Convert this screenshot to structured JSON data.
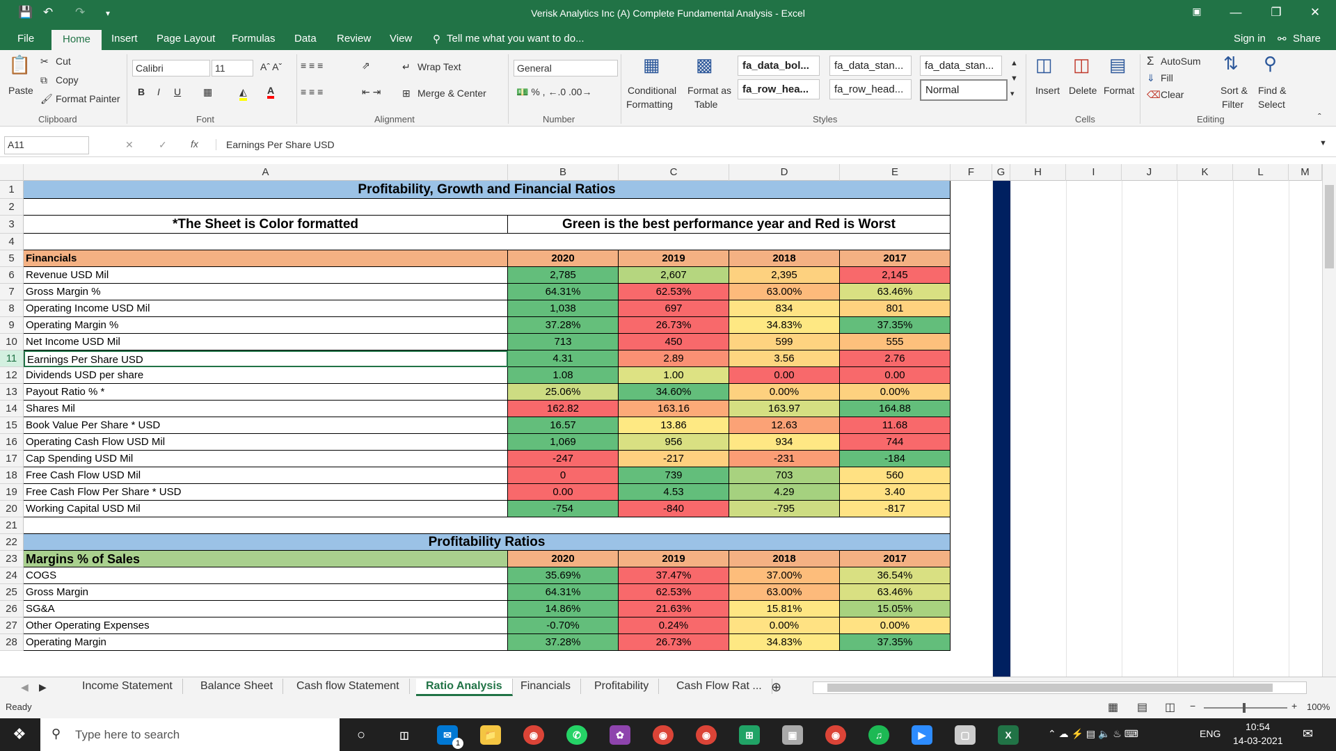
{
  "window": {
    "title": "Verisk Analytics Inc (A) Complete Fundamental Analysis - Excel"
  },
  "menu": {
    "items": [
      "File",
      "Home",
      "Insert",
      "Page Layout",
      "Formulas",
      "Data",
      "Review",
      "View"
    ],
    "tell_me": "Tell me what you want to do...",
    "sign_in": "Sign in",
    "share": "Share"
  },
  "ribbon": {
    "clipboard": {
      "paste": "Paste",
      "cut": "Cut",
      "copy": "Copy",
      "format_painter": "Format Painter",
      "label": "Clipboard"
    },
    "font": {
      "name": "Calibri",
      "size": "11",
      "label": "Font"
    },
    "alignment": {
      "wrap_text": "Wrap Text",
      "merge_center": "Merge & Center",
      "label": "Alignment"
    },
    "number": {
      "format": "General",
      "label": "Number"
    },
    "styles": {
      "conditional": "Conditional",
      "formatting": "Formatting",
      "format_as": "Format as",
      "table": "Table",
      "style1": "fa_data_bol...",
      "style2": "fa_data_stan...",
      "style3": "fa_data_stan...",
      "style4": "fa_row_hea...",
      "style5": "fa_row_head...",
      "style6": "Normal",
      "label": "Styles"
    },
    "cells": {
      "insert": "Insert",
      "delete": "Delete",
      "format": "Format",
      "label": "Cells"
    },
    "editing": {
      "autosum": "AutoSum",
      "fill": "Fill",
      "clear": "Clear",
      "sort": "Sort &",
      "filter": "Filter",
      "find": "Find &",
      "select": "Select",
      "label": "Editing"
    }
  },
  "formula_bar": {
    "name_box": "A11",
    "formula": "Earnings Per Share USD"
  },
  "columns": [
    "A",
    "B",
    "C",
    "D",
    "E",
    "F",
    "G",
    "H",
    "I",
    "J",
    "K",
    "L",
    "M"
  ],
  "sheet": {
    "title": "Profitability, Growth and Financial Ratios",
    "note_left": "*The Sheet is Color formatted",
    "note_right": "Green is the best performance year and Red is Worst",
    "financials_header": "Financials",
    "years": [
      "2020",
      "2019",
      "2018",
      "2017"
    ],
    "rows": [
      {
        "n": "6",
        "label": "Revenue USD Mil",
        "v": [
          "2,785",
          "2,607",
          "2,395",
          "2,145"
        ],
        "c": [
          "#63be7b",
          "#b5d67f",
          "#fdd17f",
          "#f8696b"
        ]
      },
      {
        "n": "7",
        "label": "Gross Margin %",
        "v": [
          "64.31%",
          "62.53%",
          "63.00%",
          "63.46%"
        ],
        "c": [
          "#63be7b",
          "#f8696b",
          "#fdba7b",
          "#d9e082"
        ]
      },
      {
        "n": "8",
        "label": "Operating Income USD Mil",
        "v": [
          "1,038",
          "697",
          "834",
          "801"
        ],
        "c": [
          "#63be7b",
          "#f8696b",
          "#ffe384",
          "#fed27f"
        ]
      },
      {
        "n": "9",
        "label": "Operating Margin %",
        "v": [
          "37.28%",
          "26.73%",
          "34.83%",
          "37.35%"
        ],
        "c": [
          "#65bf7b",
          "#f8696b",
          "#fee883",
          "#63be7b"
        ]
      },
      {
        "n": "10",
        "label": "Net Income USD Mil",
        "v": [
          "713",
          "450",
          "599",
          "555"
        ],
        "c": [
          "#63be7b",
          "#f8696b",
          "#fed380",
          "#fdc07c"
        ]
      },
      {
        "n": "11",
        "label": "Earnings Per Share USD",
        "v": [
          "4.31",
          "2.89",
          "3.56",
          "2.76"
        ],
        "c": [
          "#63be7b",
          "#fa9074",
          "#fed680",
          "#f8696b"
        ]
      },
      {
        "n": "12",
        "label": "Dividends USD per share",
        "v": [
          "1.08",
          "1.00",
          "0.00",
          "0.00"
        ],
        "c": [
          "#63be7b",
          "#dde283",
          "#f8696b",
          "#f8696b"
        ]
      },
      {
        "n": "13",
        "label": "Payout Ratio % *",
        "v": [
          "25.06%",
          "34.60%",
          "0.00%",
          "0.00%"
        ],
        "c": [
          "#cddc82",
          "#63be7b",
          "#fdd17f",
          "#fdd17f"
        ]
      },
      {
        "n": "14",
        "label": "Shares Mil",
        "v": [
          "162.82",
          "163.16",
          "163.97",
          "164.88"
        ],
        "c": [
          "#f8696b",
          "#fcaa78",
          "#d5df82",
          "#63be7b"
        ]
      },
      {
        "n": "15",
        "label": "Book Value Per Share * USD",
        "v": [
          "16.57",
          "13.86",
          "12.63",
          "11.68"
        ],
        "c": [
          "#63be7b",
          "#fee983",
          "#fba276",
          "#f8696b"
        ]
      },
      {
        "n": "16",
        "label": "Operating Cash Flow USD Mil",
        "v": [
          "1,069",
          "956",
          "934",
          "744"
        ],
        "c": [
          "#63be7b",
          "#d9e082",
          "#ffe784",
          "#f8696b"
        ]
      },
      {
        "n": "17",
        "label": "Cap Spending USD Mil",
        "v": [
          "-247",
          "-217",
          "-231",
          "-184"
        ],
        "c": [
          "#f8696b",
          "#fed07f",
          "#fb9d75",
          "#63be7b"
        ]
      },
      {
        "n": "18",
        "label": "Free Cash Flow USD Mil",
        "v": [
          "0",
          "739",
          "703",
          "560"
        ],
        "c": [
          "#f8696b",
          "#63be7b",
          "#a8d27f",
          "#ffe183"
        ]
      },
      {
        "n": "19",
        "label": "Free Cash Flow Per Share * USD",
        "v": [
          "0.00",
          "4.53",
          "4.29",
          "3.40"
        ],
        "c": [
          "#f8696b",
          "#63be7b",
          "#a5d17f",
          "#ffe183"
        ]
      },
      {
        "n": "20",
        "label": "Working Capital USD Mil",
        "v": [
          "-754",
          "-840",
          "-795",
          "-817"
        ],
        "c": [
          "#63be7b",
          "#f8696b",
          "#cddc82",
          "#ffe384"
        ]
      }
    ],
    "profitability_title": "Profitability Ratios",
    "margins_header": "Margins % of Sales",
    "rows2": [
      {
        "n": "24",
        "label": "COGS",
        "v": [
          "35.69%",
          "37.47%",
          "37.00%",
          "36.54%"
        ],
        "c": [
          "#63be7b",
          "#f8696b",
          "#fdbd7b",
          "#d9e082"
        ]
      },
      {
        "n": "25",
        "label": "Gross Margin",
        "v": [
          "64.31%",
          "62.53%",
          "63.00%",
          "63.46%"
        ],
        "c": [
          "#63be7b",
          "#f8696b",
          "#fdba7b",
          "#d9e082"
        ]
      },
      {
        "n": "26",
        "label": "SG&A",
        "v": [
          "14.86%",
          "21.63%",
          "15.81%",
          "15.05%"
        ],
        "c": [
          "#63be7b",
          "#f8696b",
          "#fee683",
          "#a8d27f"
        ]
      },
      {
        "n": "27",
        "label": "Other Operating Expenses",
        "v": [
          "-0.70%",
          "0.24%",
          "0.00%",
          "0.00%"
        ],
        "c": [
          "#63be7b",
          "#f8696b",
          "#ffe283",
          "#ffe283"
        ]
      },
      {
        "n": "28",
        "label": "Operating Margin",
        "v": [
          "37.28%",
          "26.73%",
          "34.83%",
          "37.35%"
        ],
        "c": [
          "#65bf7b",
          "#f8696b",
          "#fee883",
          "#63be7b"
        ]
      }
    ]
  },
  "tabs": [
    "Income Statement",
    "Balance Sheet",
    "Cash flow Statement",
    "Ratio Analysis",
    "Financials",
    "Profitability",
    "Cash Flow Rat ..."
  ],
  "status": {
    "ready": "Ready",
    "zoom": "100%"
  },
  "taskbar": {
    "search": "Type here to search",
    "lang": "ENG",
    "time": "10:54",
    "date": "14-03-2021",
    "mail_badge": "1"
  },
  "colors": {
    "accent": "#217346",
    "blue_header": "#9bc2e6",
    "orange_header": "#f4b183",
    "green_header": "#a9d08e",
    "navy": "#002060"
  }
}
